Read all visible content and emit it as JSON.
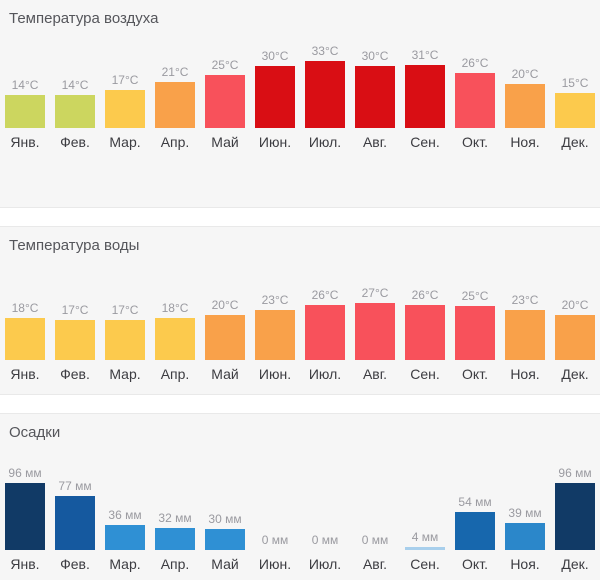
{
  "page": {
    "section_background": "#f6f6f6",
    "divider_background": "#ffffff",
    "value_label_color": "#9a9aa0",
    "month_label_color": "#3c3c41",
    "title_color": "#55565b"
  },
  "chart_data": [
    {
      "type": "bar",
      "title": "Температура воздуха",
      "unit": "°C",
      "categories": [
        "Янв.",
        "Фев.",
        "Мар.",
        "Апр.",
        "Май",
        "Июн.",
        "Июл.",
        "Авг.",
        "Сен.",
        "Окт.",
        "Ноя.",
        "Дек."
      ],
      "values": [
        14,
        14,
        17,
        21,
        25,
        30,
        33,
        30,
        31,
        26,
        20,
        15
      ],
      "labels": [
        "14°C",
        "14°C",
        "17°C",
        "21°C",
        "25°C",
        "30°C",
        "33°C",
        "30°C",
        "31°C",
        "26°C",
        "20°C",
        "15°C"
      ],
      "bar_colors": [
        "#ccd65f",
        "#ccd65f",
        "#fcca4d",
        "#f9a14a",
        "#f8515b",
        "#d90e14",
        "#d90e14",
        "#d90e14",
        "#d90e14",
        "#f8515b",
        "#f9a14a",
        "#fcca4d"
      ],
      "ylim": [
        0,
        35
      ],
      "xlabel": "",
      "ylabel": "",
      "grid": false,
      "legend": false
    },
    {
      "type": "bar",
      "title": "Температура воды",
      "unit": "°C",
      "categories": [
        "Янв.",
        "Фев.",
        "Мар.",
        "Апр.",
        "Май",
        "Июн.",
        "Июл.",
        "Авг.",
        "Сен.",
        "Окт.",
        "Ноя.",
        "Дек."
      ],
      "values": [
        18,
        17,
        17,
        18,
        20,
        23,
        26,
        27,
        26,
        25,
        23,
        20
      ],
      "labels": [
        "18°C",
        "17°C",
        "17°C",
        "18°C",
        "20°C",
        "23°C",
        "26°C",
        "27°C",
        "26°C",
        "25°C",
        "23°C",
        "20°C"
      ],
      "bar_colors": [
        "#fcca4d",
        "#fcca4d",
        "#fcca4d",
        "#fcca4d",
        "#f9a14a",
        "#f9a14a",
        "#f8515b",
        "#f8515b",
        "#f8515b",
        "#f8515b",
        "#f9a14a",
        "#f9a14a"
      ],
      "ylim": [
        0,
        30
      ],
      "xlabel": "",
      "ylabel": "",
      "grid": false,
      "legend": false
    },
    {
      "type": "bar",
      "title": "Осадки",
      "unit": " мм",
      "categories": [
        "Янв.",
        "Фев.",
        "Мар.",
        "Апр.",
        "Май",
        "Июн.",
        "Июл.",
        "Авг.",
        "Сен.",
        "Окт.",
        "Ноя.",
        "Дек."
      ],
      "values": [
        96,
        77,
        36,
        32,
        30,
        0,
        0,
        0,
        4,
        54,
        39,
        96
      ],
      "labels": [
        "96 мм",
        "77 мм",
        "36 мм",
        "32 мм",
        "30 мм",
        "0 мм",
        "0 мм",
        "0 мм",
        "4 мм",
        "54 мм",
        "39 мм",
        "96 мм"
      ],
      "bar_colors": [
        "#113a66",
        "#15599f",
        "#2f90d4",
        "#2f90d4",
        "#2f90d4",
        "#2f90d4",
        "#2f90d4",
        "#2f90d4",
        "#a8cfec",
        "#1767ad",
        "#2b87ca",
        "#113a66"
      ],
      "ylim": [
        0,
        100
      ],
      "xlabel": "",
      "ylabel": "",
      "grid": false,
      "legend": false
    }
  ]
}
